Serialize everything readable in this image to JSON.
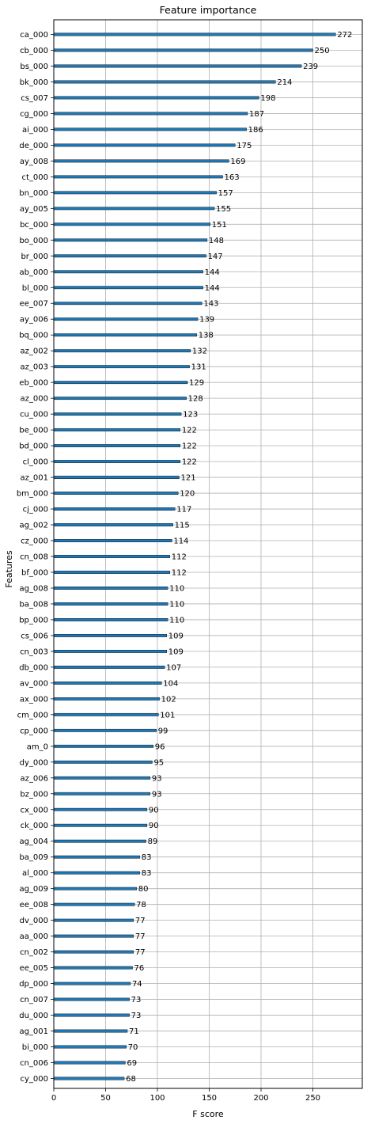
{
  "chart_data": {
    "type": "bar",
    "orientation": "horizontal",
    "title": "Feature importance",
    "xlabel": "F score",
    "ylabel": "Features",
    "xlim": [
      0,
      300
    ],
    "xticks": [
      0,
      50,
      100,
      150,
      200,
      250
    ],
    "grid": true,
    "bar_color": "#1f77b4",
    "categories": [
      "ca_000",
      "cb_000",
      "bs_000",
      "bk_000",
      "cs_007",
      "cg_000",
      "ai_000",
      "de_000",
      "ay_008",
      "ct_000",
      "bn_000",
      "ay_005",
      "bc_000",
      "bo_000",
      "br_000",
      "ab_000",
      "bl_000",
      "ee_007",
      "ay_006",
      "bq_000",
      "az_002",
      "az_003",
      "eb_000",
      "az_000",
      "cu_000",
      "be_000",
      "bd_000",
      "cl_000",
      "az_001",
      "bm_000",
      "cj_000",
      "ag_002",
      "cz_000",
      "cn_008",
      "bf_000",
      "ag_008",
      "ba_008",
      "bp_000",
      "cs_006",
      "cn_003",
      "db_000",
      "av_000",
      "ax_000",
      "cm_000",
      "cp_000",
      "am_0",
      "dy_000",
      "az_006",
      "bz_000",
      "cx_000",
      "ck_000",
      "ag_004",
      "ba_009",
      "al_000",
      "ag_009",
      "ee_008",
      "dv_000",
      "aa_000",
      "cn_002",
      "ee_005",
      "dp_000",
      "cn_007",
      "du_000",
      "ag_001",
      "bi_000",
      "cn_006",
      "cy_000"
    ],
    "values": [
      272,
      250,
      239,
      214,
      198,
      187,
      186,
      175,
      169,
      163,
      157,
      155,
      151,
      148,
      147,
      144,
      144,
      143,
      139,
      138,
      132,
      131,
      129,
      128,
      123,
      122,
      122,
      122,
      121,
      120,
      117,
      115,
      114,
      112,
      112,
      110,
      110,
      110,
      109,
      109,
      107,
      104,
      102,
      101,
      99,
      96,
      95,
      93,
      93,
      90,
      90,
      89,
      83,
      83,
      80,
      78,
      77,
      77,
      77,
      76,
      74,
      73,
      73,
      71,
      70,
      69,
      68
    ]
  }
}
